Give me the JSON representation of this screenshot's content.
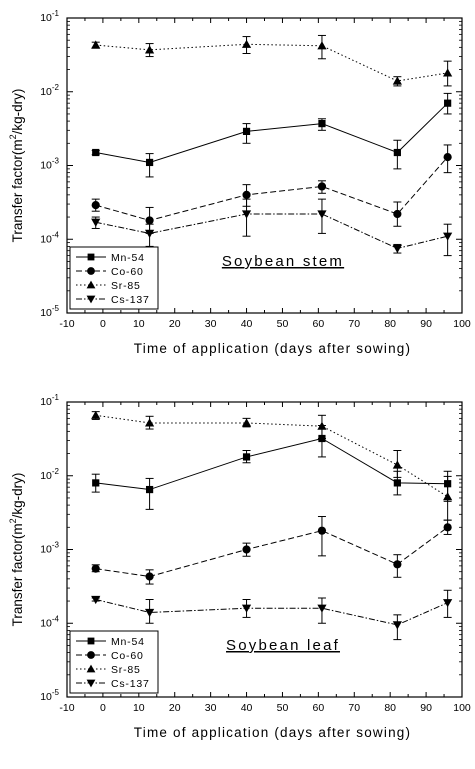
{
  "chart_data": [
    {
      "type": "line",
      "title": "Soybean stem",
      "xlabel": "Time of application (days after sowing)",
      "ylabel_prefix": "Transfer factor(m",
      "ylabel_sup": "2",
      "ylabel_suffix": "/kg-dry)",
      "xlim": [
        -10,
        100
      ],
      "ylim": [
        1e-05,
        0.1
      ],
      "yscale": "log",
      "x_ticks": [
        "-10",
        "0",
        "10",
        "20",
        "30",
        "40",
        "50",
        "60",
        "70",
        "80",
        "90",
        "100"
      ],
      "y_ticks": [
        {
          "base": "10",
          "exp": "-5"
        },
        {
          "base": "10",
          "exp": "-4"
        },
        {
          "base": "10",
          "exp": "-3"
        },
        {
          "base": "10",
          "exp": "-2"
        },
        {
          "base": "10",
          "exp": "-1"
        }
      ],
      "legend_position": "bottom-left",
      "x": [
        -2,
        13,
        40,
        61,
        82,
        96
      ],
      "series": [
        {
          "name": "Mn-54",
          "marker": "square",
          "line": "solid",
          "values": [
            0.0015,
            0.0011,
            0.0029,
            0.0037,
            0.0015,
            0.007
          ],
          "err_low": [
            0.0014,
            0.0007,
            0.002,
            0.003,
            0.0009,
            0.005
          ],
          "err_high": [
            0.0016,
            0.00145,
            0.0037,
            0.0043,
            0.0022,
            0.0095
          ]
        },
        {
          "name": "Co-60",
          "marker": "circle",
          "line": "dashed",
          "values": [
            0.00029,
            0.00018,
            0.0004,
            0.00052,
            0.00022,
            0.0013
          ],
          "err_low": [
            0.00024,
            0.00012,
            0.00028,
            0.00042,
            0.00015,
            0.0008
          ],
          "err_high": [
            0.00035,
            0.00027,
            0.00055,
            0.00062,
            0.00032,
            0.0019
          ]
        },
        {
          "name": "Sr-85",
          "marker": "triangle-up",
          "line": "dotted",
          "values": [
            0.043,
            0.037,
            0.044,
            0.042,
            0.014,
            0.018
          ],
          "err_low": [
            0.039,
            0.03,
            0.033,
            0.028,
            0.012,
            0.012
          ],
          "err_high": [
            0.047,
            0.045,
            0.056,
            0.058,
            0.016,
            0.026
          ]
        },
        {
          "name": "Cs-137",
          "marker": "triangle-down",
          "line": "dashdot",
          "values": [
            0.00017,
            0.00012,
            0.00022,
            0.00022,
            7.5e-05,
            0.00011
          ],
          "err_low": [
            0.00014,
            8e-05,
            0.00011,
            0.00012,
            6.5e-05,
            6e-05
          ],
          "err_high": [
            0.0002,
            0.00016,
            0.00035,
            0.00035,
            8.5e-05,
            0.00016
          ]
        }
      ]
    },
    {
      "type": "line",
      "title": "Soybean leaf",
      "xlabel": "Time of application (days after sowing)",
      "ylabel_prefix": "Transfer factor(m",
      "ylabel_sup": "2",
      "ylabel_suffix": "/kg-dry)",
      "xlim": [
        -10,
        100
      ],
      "ylim": [
        1e-05,
        0.1
      ],
      "yscale": "log",
      "x_ticks": [
        "-10",
        "0",
        "10",
        "20",
        "30",
        "40",
        "50",
        "60",
        "70",
        "80",
        "90",
        "100"
      ],
      "y_ticks": [
        {
          "base": "10",
          "exp": "-5"
        },
        {
          "base": "10",
          "exp": "-4"
        },
        {
          "base": "10",
          "exp": "-3"
        },
        {
          "base": "10",
          "exp": "-2"
        },
        {
          "base": "10",
          "exp": "-1"
        }
      ],
      "legend_position": "bottom-left",
      "x": [
        -2,
        13,
        40,
        61,
        82,
        96
      ],
      "series": [
        {
          "name": "Mn-54",
          "marker": "square",
          "line": "solid",
          "values": [
            0.008,
            0.0065,
            0.018,
            0.032,
            0.008,
            0.0078
          ],
          "err_low": [
            0.006,
            0.0035,
            0.015,
            0.018,
            0.0055,
            0.0045
          ],
          "err_high": [
            0.0105,
            0.0092,
            0.022,
            0.048,
            0.0115,
            0.0115
          ]
        },
        {
          "name": "Co-60",
          "marker": "circle",
          "line": "dashed",
          "values": [
            0.00055,
            0.00043,
            0.001,
            0.0018,
            0.00063,
            0.002
          ],
          "err_low": [
            0.0005,
            0.00034,
            0.00081,
            0.00082,
            0.00042,
            0.0016
          ],
          "err_high": [
            0.00062,
            0.00053,
            0.00122,
            0.0028,
            0.00085,
            0.0025
          ]
        },
        {
          "name": "Sr-85",
          "marker": "triangle-up",
          "line": "dotted",
          "values": [
            0.066,
            0.052,
            0.052,
            0.047,
            0.014,
            0.0052
          ],
          "err_low": [
            0.058,
            0.043,
            0.046,
            0.032,
            0.0095,
            0.0025
          ],
          "err_high": [
            0.074,
            0.064,
            0.06,
            0.066,
            0.022,
            0.0098
          ]
        },
        {
          "name": "Cs-137",
          "marker": "triangle-down",
          "line": "dashdot",
          "values": [
            0.00021,
            0.00014,
            0.00016,
            0.00016,
            9.5e-05,
            0.00019
          ],
          "err_low": [
            0.0002,
            0.0001,
            0.00012,
            0.0001,
            6e-05,
            0.00012
          ],
          "err_high": [
            0.00022,
            0.00021,
            0.00021,
            0.00022,
            0.00013,
            0.00028
          ]
        }
      ]
    }
  ]
}
